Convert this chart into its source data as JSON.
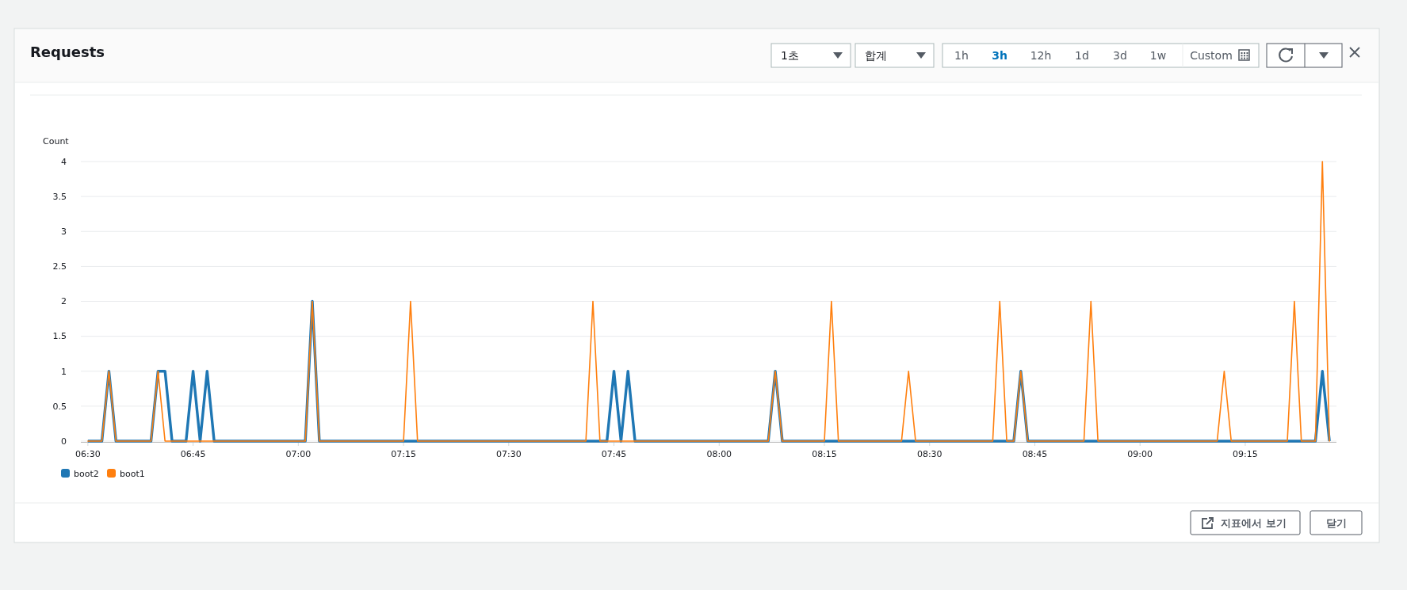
{
  "chart_data": {
    "type": "line",
    "title": "Requests",
    "ylabel": "Count",
    "xlim": [
      6.4833,
      9.4667
    ],
    "xticks": [
      {
        "value": 6.5,
        "label": "06:30"
      },
      {
        "value": 6.75,
        "label": "06:45"
      },
      {
        "value": 7,
        "label": "07:00"
      },
      {
        "value": 7.25,
        "label": "07:15"
      },
      {
        "value": 7.5,
        "label": "07:30"
      },
      {
        "value": 7.75,
        "label": "07:45"
      },
      {
        "value": 8,
        "label": "08:00"
      },
      {
        "value": 8.25,
        "label": "08:15"
      },
      {
        "value": 8.5,
        "label": "08:30"
      },
      {
        "value": 8.75,
        "label": "08:45"
      },
      {
        "value": 9,
        "label": "09:00"
      },
      {
        "value": 9.25,
        "label": "09:15"
      }
    ],
    "ylim": [
      0,
      4
    ],
    "yticks": [
      0,
      0.5,
      1,
      1.5,
      2,
      2.5,
      3,
      3.5,
      4
    ],
    "grid": "y",
    "legend": "bottom left",
    "marker": "none",
    "line_style": "solid",
    "annotations": [
      "1초",
      "합계",
      "1h",
      "3h",
      "12h",
      "1d",
      "3d",
      "1w",
      "Custom",
      "지표에서 보기",
      "닫기"
    ],
    "series": [
      {
        "name": "boot2",
        "color": "#1f77b4",
        "x": [
          6.5,
          6.5333,
          6.55,
          6.5667,
          6.65,
          6.6667,
          6.6833,
          6.7,
          6.7333,
          6.75,
          6.7667,
          6.7833,
          6.8,
          7.0167,
          7.0333,
          7.05,
          7.7333,
          7.75,
          7.7667,
          7.7833,
          7.8,
          8.1167,
          8.1333,
          8.15,
          8.7,
          8.7167,
          8.7333,
          9.4167,
          9.4333,
          9.45
        ],
        "values": [
          0,
          0,
          1,
          0,
          0,
          1,
          1,
          0,
          0,
          1,
          0,
          1,
          0,
          0,
          2,
          0,
          0,
          1,
          0,
          1,
          0,
          0,
          1,
          0,
          0,
          1,
          0,
          0,
          1,
          0
        ]
      },
      {
        "name": "boot1",
        "color": "#ff7f0e",
        "x": [
          6.5,
          6.5333,
          6.55,
          6.5667,
          6.65,
          6.6667,
          6.6833,
          7.0167,
          7.0333,
          7.05,
          7.25,
          7.2667,
          7.2833,
          7.6833,
          7.7,
          7.7167,
          8.1167,
          8.1333,
          8.15,
          8.25,
          8.2667,
          8.2833,
          8.4333,
          8.45,
          8.4667,
          8.65,
          8.6667,
          8.6833,
          8.7,
          8.7167,
          8.7333,
          8.8667,
          8.8833,
          8.9,
          9.1833,
          9.2,
          9.2167,
          9.35,
          9.3667,
          9.3833,
          9.4167,
          9.4333,
          9.45
        ],
        "values": [
          0,
          0,
          1,
          0,
          0,
          1,
          0,
          0,
          2,
          0,
          0,
          2,
          0,
          0,
          2,
          0,
          0,
          1,
          0,
          0,
          2,
          0,
          0,
          1,
          0,
          0,
          2,
          0,
          0,
          1,
          0,
          0,
          2,
          0,
          0,
          1,
          0,
          0,
          2,
          0,
          0,
          4,
          0
        ]
      }
    ]
  }
}
